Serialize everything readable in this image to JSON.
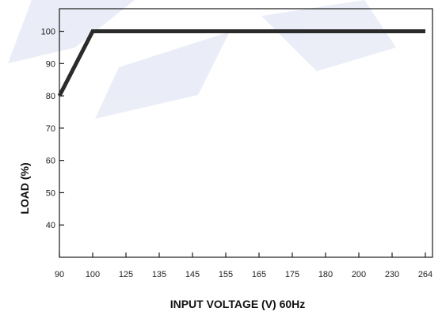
{
  "chart_data": {
    "type": "line",
    "xlabel": "INPUT VOLTAGE (V) 60Hz",
    "ylabel": "LOAD (%)",
    "x_categories": [
      "90",
      "100",
      "125",
      "135",
      "145",
      "155",
      "165",
      "175",
      "180",
      "200",
      "230",
      "264"
    ],
    "y_ticks": [
      40,
      50,
      60,
      70,
      80,
      90,
      100
    ],
    "ylim": [
      30,
      107
    ],
    "grid": false,
    "legend": "none",
    "series": [
      {
        "x": [
          "90",
          "100",
          "264"
        ],
        "values": [
          80,
          100,
          100
        ]
      }
    ],
    "colors": {
      "line": "#2b2b2b",
      "axis": "#1a1a1a",
      "watermark": "#3b5bb5"
    }
  }
}
